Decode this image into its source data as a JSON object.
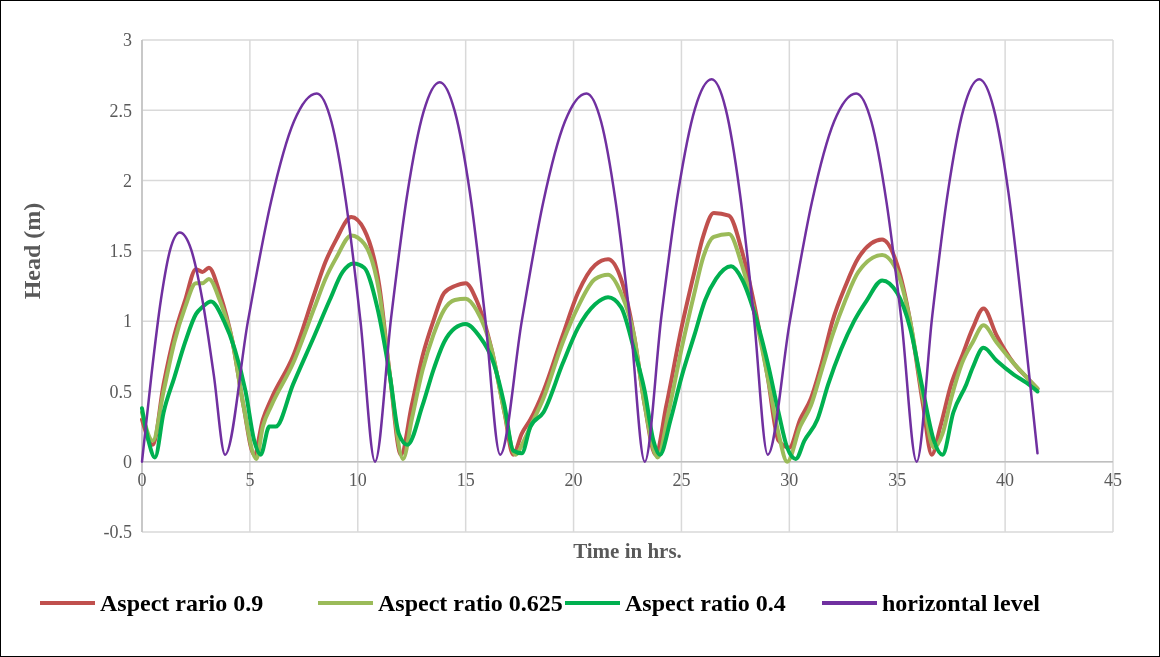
{
  "chart_data": {
    "type": "line",
    "xlabel": "Time in hrs.",
    "ylabel": "Head (m)",
    "xlim": [
      0,
      45
    ],
    "xticks": [
      0,
      5,
      10,
      15,
      20,
      25,
      30,
      35,
      40,
      45
    ],
    "ylim": [
      -0.5,
      3
    ],
    "yticks": [
      -0.5,
      0,
      0.5,
      1,
      1.5,
      2,
      2.5,
      3
    ],
    "grid": true,
    "legend": "bottom",
    "marker": "none",
    "line_style": "solid",
    "series": [
      {
        "name": "Aspect rario 0.9",
        "color": "#c0504d",
        "x": [
          0,
          0.5,
          1,
          1.5,
          2,
          2.5,
          2.8,
          3.1,
          3.6,
          4.2,
          4.7,
          5.2,
          5.6,
          6,
          7,
          8,
          8.5,
          9,
          9.7,
          10.3,
          11,
          11.5,
          12,
          12.5,
          13,
          13.5,
          14,
          14.5,
          15,
          15.5,
          16.2,
          16.8,
          17.2,
          17.6,
          18,
          18.6,
          19.5,
          20.2,
          21,
          21.6,
          22.2,
          22.8,
          23.3,
          23.8,
          24.3,
          25,
          25.6,
          26,
          26.5,
          27.2,
          27.8,
          28.4,
          29,
          29.5,
          30,
          30.5,
          31,
          31.5,
          32,
          32.6,
          33.2,
          34.3,
          35,
          35.6,
          36.2,
          36.6,
          37,
          37.5,
          38,
          38.5,
          39,
          39.6,
          40.4,
          41,
          41.5
        ],
        "values": [
          0.3,
          0.12,
          0.55,
          0.9,
          1.15,
          1.37,
          1.35,
          1.38,
          1.2,
          0.85,
          0.4,
          0.05,
          0.3,
          0.45,
          0.75,
          1.2,
          1.42,
          1.58,
          1.74,
          1.65,
          1.25,
          0.6,
          0.05,
          0.4,
          0.75,
          1,
          1.2,
          1.25,
          1.27,
          1.15,
          0.8,
          0.35,
          0.05,
          0.2,
          0.3,
          0.5,
          0.9,
          1.2,
          1.4,
          1.44,
          1.3,
          0.9,
          0.4,
          0.05,
          0.4,
          0.95,
          1.35,
          1.6,
          1.77,
          1.75,
          1.5,
          1.1,
          0.6,
          0.15,
          0.1,
          0.3,
          0.45,
          0.7,
          1,
          1.25,
          1.45,
          1.58,
          1.4,
          1,
          0.4,
          0.05,
          0.25,
          0.55,
          0.75,
          0.95,
          1.09,
          0.9,
          0.7,
          0.6,
          0.52
        ]
      },
      {
        "name": "Aspect ratio 0.625",
        "color": "#9bbb59",
        "x": [
          0,
          0.5,
          1,
          1.5,
          2,
          2.5,
          2.8,
          3.1,
          3.6,
          4.2,
          4.7,
          5.3,
          5.6,
          6,
          7,
          8,
          8.5,
          9,
          9.7,
          10.3,
          11,
          11.5,
          12.1,
          12.5,
          13,
          13.5,
          14,
          14.5,
          15,
          15.5,
          16.2,
          16.8,
          17.3,
          17.7,
          18,
          18.6,
          19.5,
          20.2,
          21,
          21.6,
          22.2,
          22.8,
          23.3,
          23.9,
          24.4,
          25,
          25.6,
          26,
          26.5,
          27.2,
          27.8,
          28.4,
          29,
          29.5,
          29.9,
          30.5,
          31,
          31.5,
          32,
          32.6,
          33.2,
          34.3,
          35,
          35.6,
          36.2,
          36.7,
          37.1,
          37.5,
          38,
          38.5,
          39,
          39.6,
          40.4,
          41,
          41.5
        ],
        "values": [
          0.35,
          0.15,
          0.5,
          0.85,
          1.1,
          1.27,
          1.27,
          1.3,
          1.15,
          0.85,
          0.4,
          0.02,
          0.25,
          0.4,
          0.7,
          1.1,
          1.3,
          1.45,
          1.61,
          1.55,
          1.2,
          0.6,
          0.02,
          0.3,
          0.65,
          0.9,
          1.08,
          1.15,
          1.16,
          1.08,
          0.8,
          0.35,
          0.05,
          0.15,
          0.25,
          0.45,
          0.85,
          1.1,
          1.3,
          1.33,
          1.2,
          0.9,
          0.4,
          0.03,
          0.35,
          0.8,
          1.2,
          1.45,
          1.6,
          1.62,
          1.4,
          1.05,
          0.6,
          0.2,
          0,
          0.25,
          0.4,
          0.65,
          0.9,
          1.15,
          1.35,
          1.47,
          1.35,
          1,
          0.45,
          0.1,
          0.2,
          0.45,
          0.7,
          0.85,
          0.97,
          0.85,
          0.7,
          0.6,
          0.52
        ]
      },
      {
        "name": "Aspect ratio 0.4",
        "color": "#00b050",
        "x": [
          0,
          0.3,
          0.6,
          1,
          1.5,
          2,
          2.5,
          2.8,
          3.2,
          3.8,
          4.3,
          4.8,
          5.2,
          5.5,
          5.9,
          6.2,
          7,
          8,
          8.7,
          9.3,
          9.8,
          10.3,
          10.9,
          11.5,
          11.9,
          12.3,
          13,
          13.5,
          14,
          14.5,
          15,
          15.6,
          16.3,
          16.8,
          17.2,
          17.6,
          18,
          18.6,
          19.5,
          20.2,
          21,
          21.6,
          22.2,
          22.8,
          23.3,
          23.7,
          24,
          24.5,
          25,
          25.6,
          26.1,
          26.6,
          27.3,
          27.8,
          28.4,
          29,
          29.5,
          29.9,
          30.3,
          30.7,
          31.3,
          31.8,
          32.4,
          33,
          33.6,
          34.3,
          35,
          35.6,
          36.2,
          36.7,
          37.1,
          37.6,
          38.2,
          38.5,
          39,
          39.6,
          40.4,
          41,
          41.5
        ],
        "values": [
          0.38,
          0.15,
          0.03,
          0.35,
          0.6,
          0.85,
          1.05,
          1.1,
          1.14,
          1,
          0.8,
          0.5,
          0.15,
          0.05,
          0.25,
          0.25,
          0.55,
          0.9,
          1.15,
          1.35,
          1.41,
          1.38,
          1.1,
          0.6,
          0.2,
          0.12,
          0.4,
          0.65,
          0.85,
          0.95,
          0.98,
          0.9,
          0.7,
          0.4,
          0.08,
          0.06,
          0.25,
          0.35,
          0.7,
          0.95,
          1.12,
          1.17,
          1.1,
          0.8,
          0.5,
          0.15,
          0.05,
          0.3,
          0.6,
          0.9,
          1.15,
          1.3,
          1.39,
          1.3,
          1.05,
          0.7,
          0.35,
          0.1,
          0.02,
          0.15,
          0.3,
          0.55,
          0.8,
          1,
          1.15,
          1.29,
          1.2,
          0.95,
          0.5,
          0.15,
          0.05,
          0.35,
          0.55,
          0.67,
          0.81,
          0.72,
          0.62,
          0.56,
          0.5
        ]
      },
      {
        "name": "horizontal level",
        "color": "#7030a0",
        "x": [
          0,
          0.44,
          0.875,
          1.31,
          1.75,
          2.275,
          2.8,
          3.325,
          3.85,
          4.91,
          5.98,
          7.04,
          8.1,
          8.775,
          9.45,
          10.125,
          10.8,
          11.55,
          12.3,
          13.05,
          13.8,
          14.5,
          15.2,
          15.9,
          16.6,
          17.6,
          18.6,
          19.6,
          20.6,
          21.275,
          21.95,
          22.625,
          23.3,
          24.075,
          24.85,
          25.625,
          26.4,
          27.05,
          27.7,
          28.35,
          29,
          30.025,
          31.05,
          32.075,
          33.1,
          33.8,
          34.5,
          35.2,
          35.9,
          36.625,
          37.35,
          38.075,
          38.8,
          39.475,
          40.15,
          40.825,
          41.5
        ],
        "values": [
          0,
          0.62,
          1.15,
          1.51,
          1.63,
          1.51,
          1.15,
          0.62,
          0.05,
          1,
          1.85,
          2.42,
          2.62,
          2.42,
          1.85,
          1,
          0,
          1.03,
          1.91,
          2.49,
          2.7,
          2.49,
          1.91,
          1.03,
          0.05,
          1,
          1.85,
          2.42,
          2.62,
          2.42,
          1.85,
          1,
          0,
          1.04,
          1.92,
          2.51,
          2.72,
          2.51,
          1.92,
          1.04,
          0.05,
          1,
          1.85,
          2.42,
          2.62,
          2.42,
          1.85,
          1,
          0,
          1.04,
          1.92,
          2.51,
          2.72,
          2.51,
          1.92,
          1.04,
          0.06
        ]
      }
    ]
  }
}
